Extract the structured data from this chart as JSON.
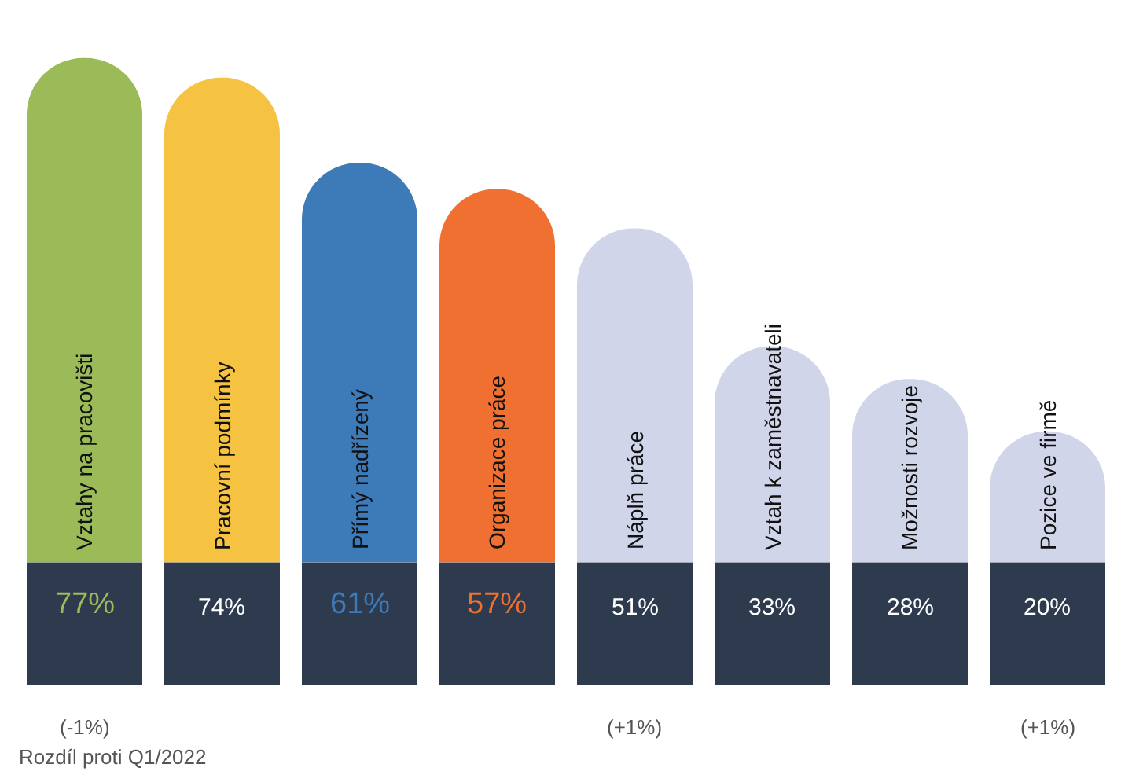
{
  "chart_data": {
    "type": "bar",
    "categories": [
      "Vztahy na pracovišti",
      "Pracovní podmínky",
      "Přímý nadřízený",
      "Organizace práce",
      "Náplň práce",
      "Vztah k zaměstnavateli",
      "Možnosti rozvoje",
      "Pozice ve firmě"
    ],
    "values": [
      77,
      74,
      61,
      57,
      51,
      33,
      28,
      20
    ],
    "colors": [
      "#9bbb59",
      "#f5c242",
      "#3d7ab8",
      "#ef7030",
      "#d0d5ea",
      "#d0d5ea",
      "#d0d5ea",
      "#d0d5ea"
    ],
    "value_labels": [
      "77%",
      "74%",
      "61%",
      "57%",
      "51%",
      "33%",
      "28%",
      "20%"
    ],
    "annotations": [
      "(-1%)",
      "(+1%)",
      "(+1%)",
      "Rozdíl proti Q1/2022"
    ]
  }
}
